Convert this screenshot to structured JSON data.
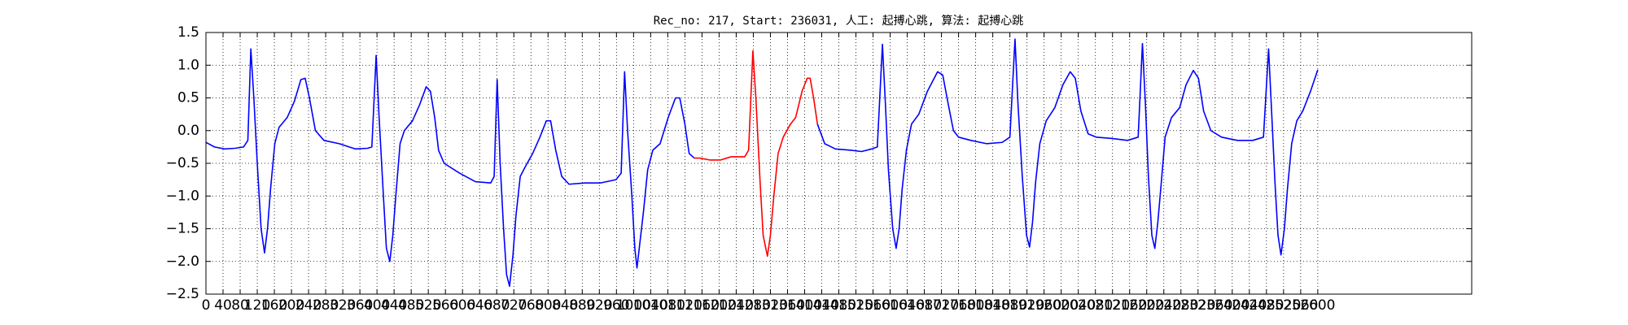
{
  "chart_data": {
    "type": "line",
    "title": "Rec_no: 217, Start: 236031, 人工: 起搏心跳, 算法: 起搏心跳",
    "x": [
      0,
      20,
      44,
      68,
      88,
      98,
      105,
      112,
      120,
      129,
      137,
      144,
      151,
      161,
      171,
      190,
      207,
      222,
      232,
      242,
      256,
      276,
      312,
      349,
      378,
      388,
      398,
      405,
      415,
      422,
      430,
      437,
      444,
      454,
      464,
      483,
      500,
      515,
      525,
      535,
      544,
      557,
      593,
      630,
      666,
      674,
      681,
      688,
      696,
      703,
      710,
      718,
      725,
      735,
      747,
      764,
      781,
      796,
      806,
      818,
      832,
      849,
      886,
      923,
      959,
      971,
      979,
      986,
      996,
      1003,
      1008,
      1015,
      1023,
      1033,
      1045,
      1062,
      1081,
      1098,
      1108,
      1120,
      1130,
      1142,
      1155,
      1179,
      1203,
      1228,
      1260,
      1269,
      1279,
      1286,
      1296,
      1303,
      1313,
      1320,
      1328,
      1338,
      1350,
      1367,
      1379,
      1394,
      1406,
      1413,
      1421,
      1430,
      1447,
      1472,
      1509,
      1533,
      1557,
      1570,
      1582,
      1589,
      1596,
      1606,
      1614,
      1621,
      1628,
      1638,
      1650,
      1667,
      1687,
      1711,
      1723,
      1736,
      1748,
      1760,
      1789,
      1826,
      1862,
      1880,
      1892,
      1899,
      1909,
      1919,
      1926,
      1933,
      1940,
      1950,
      1965,
      1985,
      2004,
      2021,
      2033,
      2046,
      2063,
      2082,
      2119,
      2155,
      2180,
      2190,
      2197,
      2204,
      2212,
      2219,
      2226,
      2234,
      2243,
      2258,
      2277,
      2292,
      2309,
      2321,
      2333,
      2350,
      2375,
      2412,
      2448,
      2473,
      2485,
      2492,
      2500,
      2507,
      2514,
      2522,
      2529,
      2539,
      2551,
      2565,
      2583,
      2600
    ],
    "series": [
      {
        "color": "#0000ff",
        "values": [
          -0.18,
          -0.25,
          -0.28,
          -0.27,
          -0.25,
          -0.15,
          1.25,
          0.5,
          -0.5,
          -1.5,
          -1.87,
          -1.5,
          -0.9,
          -0.2,
          0.05,
          0.2,
          0.45,
          0.78,
          0.8,
          0.5,
          0.0,
          -0.15,
          -0.2,
          -0.28,
          -0.27,
          -0.25,
          1.15,
          0.2,
          -1.0,
          -1.8,
          -2.0,
          -1.6,
          -1.0,
          -0.2,
          0.0,
          0.15,
          0.4,
          0.67,
          0.6,
          0.2,
          -0.3,
          -0.5,
          -0.65,
          -0.78,
          -0.8,
          -0.7,
          0.78,
          -0.5,
          -1.5,
          -2.2,
          -2.38,
          -1.9,
          -1.3,
          -0.7,
          -0.55,
          -0.35,
          -0.1,
          0.15,
          0.15,
          -0.3,
          -0.7,
          -0.82,
          -0.8,
          -0.8,
          -0.75,
          -0.65,
          0.9,
          0.0,
          -1.0,
          -1.8,
          -2.1,
          -1.7,
          -1.25,
          -0.6,
          -0.3,
          -0.2,
          0.2,
          0.5,
          0.5,
          0.1,
          -0.35,
          -0.42,
          null,
          null,
          null,
          null,
          null,
          null,
          null,
          null,
          null,
          null,
          null,
          null,
          null,
          null,
          null,
          null,
          null,
          null,
          null,
          null,
          null,
          0.1,
          -0.2,
          -0.28,
          -0.3,
          -0.32,
          -0.28,
          -0.25,
          1.32,
          0.4,
          -0.6,
          -1.5,
          -1.8,
          -1.5,
          -0.9,
          -0.3,
          0.1,
          0.25,
          0.6,
          0.9,
          0.85,
          0.4,
          0.0,
          -0.1,
          -0.15,
          -0.2,
          -0.18,
          -0.1,
          1.4,
          0.4,
          -0.7,
          -1.6,
          -1.78,
          -1.4,
          -0.8,
          -0.2,
          0.15,
          0.35,
          0.7,
          0.9,
          0.8,
          0.3,
          -0.05,
          -0.1,
          -0.12,
          -0.15,
          -0.1,
          1.33,
          0.4,
          -0.7,
          -1.6,
          -1.8,
          -1.4,
          -0.8,
          -0.1,
          0.2,
          0.35,
          0.7,
          0.92,
          0.8,
          0.3,
          0.0,
          -0.1,
          -0.15,
          -0.15,
          -0.1,
          1.25,
          0.3,
          -0.8,
          -1.6,
          -1.9,
          -1.5,
          -0.9,
          -0.2,
          0.15,
          0.3,
          0.6,
          0.93
        ]
      },
      {
        "color": "#ff0000",
        "values": [
          null,
          null,
          null,
          null,
          null,
          null,
          null,
          null,
          null,
          null,
          null,
          null,
          null,
          null,
          null,
          null,
          null,
          null,
          null,
          null,
          null,
          null,
          null,
          null,
          null,
          null,
          null,
          null,
          null,
          null,
          null,
          null,
          null,
          null,
          null,
          null,
          null,
          null,
          null,
          null,
          null,
          null,
          null,
          null,
          null,
          null,
          null,
          null,
          null,
          null,
          null,
          null,
          null,
          null,
          null,
          null,
          null,
          null,
          null,
          null,
          null,
          null,
          null,
          null,
          null,
          null,
          null,
          null,
          null,
          null,
          null,
          null,
          null,
          null,
          null,
          null,
          null,
          null,
          null,
          null,
          null,
          -0.42,
          -0.42,
          -0.45,
          -0.45,
          -0.4,
          -0.4,
          -0.3,
          1.22,
          0.5,
          -0.8,
          -1.6,
          -1.92,
          -1.6,
          -1.0,
          -0.35,
          -0.1,
          0.1,
          0.2,
          0.6,
          0.8,
          0.8,
          0.5,
          0.1,
          null,
          null,
          null,
          null,
          null,
          null,
          null,
          null,
          null,
          null,
          null,
          null,
          null,
          null,
          null,
          null,
          null,
          null,
          null,
          null,
          null,
          null,
          null,
          null,
          null,
          null,
          null,
          null,
          null,
          null,
          null,
          null,
          null,
          null,
          null,
          null,
          null,
          null,
          null,
          null,
          null,
          null,
          null,
          null,
          null,
          null,
          null,
          null,
          null,
          null,
          null,
          null,
          null,
          null,
          null,
          null,
          null,
          null,
          null,
          null,
          null,
          null,
          null,
          null,
          null,
          null,
          null,
          null,
          null,
          null,
          null,
          null,
          null,
          null,
          null,
          null
        ]
      }
    ],
    "xlim": [
      0,
      2960
    ],
    "ylim": [
      -2.5,
      1.5
    ],
    "xticks": [
      0,
      40,
      80,
      120,
      160,
      200,
      240,
      280,
      320,
      360,
      400,
      440,
      480,
      520,
      560,
      600,
      640,
      680,
      720,
      760,
      800,
      840,
      880,
      920,
      960,
      1000,
      1040,
      1080,
      1120,
      1160,
      1200,
      1240,
      1280,
      1320,
      1360,
      1400,
      1440,
      1480,
      1520,
      1560,
      1600,
      1640,
      1680,
      1720,
      1760,
      1800,
      1840,
      1880,
      1920,
      1960,
      2000,
      2040,
      2080,
      2120,
      2160,
      2200,
      2240,
      2280,
      2320,
      2360,
      2400,
      2440,
      2480,
      2520,
      2560,
      2600
    ],
    "yticks": [
      {
        "value": -2.5,
        "label": "−2.5"
      },
      {
        "value": -2.0,
        "label": "−2.0"
      },
      {
        "value": -1.5,
        "label": "−1.5"
      },
      {
        "value": -1.0,
        "label": "−1.0"
      },
      {
        "value": -0.5,
        "label": "−0.5"
      },
      {
        "value": 0.0,
        "label": "0.0"
      },
      0.5,
      {
        "value": 1.0,
        "label": "1.0"
      },
      1.5
    ],
    "grid": true
  }
}
